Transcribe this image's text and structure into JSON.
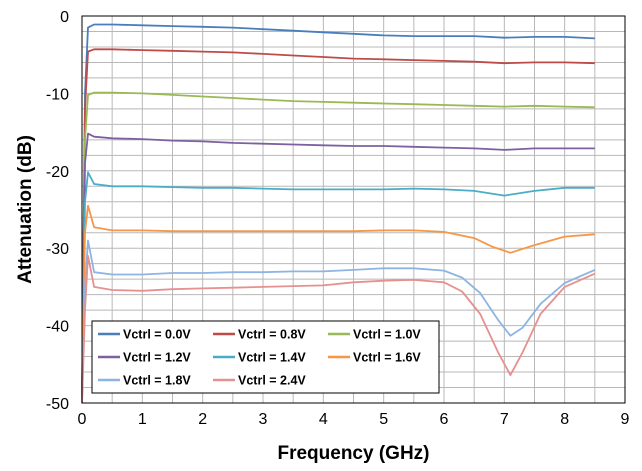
{
  "chart_data": {
    "type": "line",
    "title": "",
    "xlabel": "Frequency  (GHz)",
    "ylabel": "Attenuation  (dB)",
    "xlim": [
      0,
      9
    ],
    "ylim": [
      -50,
      0
    ],
    "x_ticks": [
      "0",
      "1",
      "2",
      "3",
      "4",
      "5",
      "6",
      "7",
      "8",
      "9"
    ],
    "y_ticks": [
      "0",
      "-10",
      "-20",
      "-30",
      "-40",
      "-50"
    ],
    "grid": "on (x and y, 0.5 GHz and 2 dB minor spacing)",
    "legend_position": "bottom-left",
    "series": [
      {
        "name": "Vctrl = 0.0V",
        "color": "#4a7ebb",
        "x": [
          0,
          0.05,
          0.1,
          0.2,
          0.5,
          1,
          1.5,
          2,
          2.5,
          3,
          3.5,
          4,
          4.5,
          5,
          5.5,
          6,
          6.5,
          7,
          7.5,
          8,
          8.5
        ],
        "y": [
          -50,
          -10,
          -1.5,
          -1.1,
          -1.1,
          -1.2,
          -1.3,
          -1.4,
          -1.5,
          -1.7,
          -1.9,
          -2.1,
          -2.3,
          -2.5,
          -2.6,
          -2.6,
          -2.6,
          -2.8,
          -2.7,
          -2.7,
          -2.9
        ]
      },
      {
        "name": "Vctrl = 0.8V",
        "color": "#be4b48",
        "x": [
          0,
          0.05,
          0.1,
          0.2,
          0.5,
          1,
          1.5,
          2,
          2.5,
          3,
          3.5,
          4,
          4.5,
          5,
          5.5,
          6,
          6.5,
          7,
          7.5,
          8,
          8.5
        ],
        "y": [
          -50,
          -12,
          -4.6,
          -4.3,
          -4.3,
          -4.4,
          -4.5,
          -4.6,
          -4.7,
          -4.9,
          -5.1,
          -5.3,
          -5.5,
          -5.6,
          -5.7,
          -5.8,
          -5.9,
          -6.1,
          -6.0,
          -6.0,
          -6.1
        ]
      },
      {
        "name": "Vctrl = 1.0V",
        "color": "#98b954",
        "x": [
          0,
          0.05,
          0.1,
          0.2,
          0.5,
          1,
          1.5,
          2,
          2.5,
          3,
          3.5,
          4,
          4.5,
          5,
          5.5,
          6,
          6.5,
          7,
          7.5,
          8,
          8.5
        ],
        "y": [
          -50,
          -16,
          -10.2,
          -9.9,
          -9.9,
          -10.0,
          -10.2,
          -10.4,
          -10.6,
          -10.8,
          -11.0,
          -11.1,
          -11.2,
          -11.3,
          -11.4,
          -11.5,
          -11.6,
          -11.7,
          -11.6,
          -11.7,
          -11.8
        ]
      },
      {
        "name": "Vctrl = 1.2V",
        "color": "#7d60a0",
        "x": [
          0,
          0.05,
          0.1,
          0.2,
          0.5,
          1,
          1.5,
          2,
          2.5,
          3,
          3.5,
          4,
          4.5,
          5,
          5.5,
          6,
          6.5,
          7,
          7.5,
          8,
          8.5
        ],
        "y": [
          -50,
          -19,
          -15.2,
          -15.6,
          -15.8,
          -15.9,
          -16.1,
          -16.2,
          -16.4,
          -16.5,
          -16.6,
          -16.7,
          -16.8,
          -16.8,
          -16.9,
          -17.0,
          -17.1,
          -17.3,
          -17.1,
          -17.1,
          -17.1
        ]
      },
      {
        "name": "Vctrl = 1.4V",
        "color": "#4bacc6",
        "x": [
          0,
          0.05,
          0.1,
          0.2,
          0.5,
          1,
          1.5,
          2,
          2.5,
          3,
          3.5,
          4,
          4.5,
          5,
          5.5,
          6,
          6.5,
          7,
          7.5,
          8,
          8.5
        ],
        "y": [
          -50,
          -24,
          -20.2,
          -21.7,
          -22.0,
          -22.0,
          -22.1,
          -22.2,
          -22.2,
          -22.3,
          -22.4,
          -22.4,
          -22.4,
          -22.4,
          -22.3,
          -22.4,
          -22.6,
          -23.2,
          -22.6,
          -22.2,
          -22.2
        ]
      },
      {
        "name": "Vctrl = 1.6V",
        "color": "#f79646",
        "x": [
          0,
          0.05,
          0.1,
          0.2,
          0.5,
          1,
          1.5,
          2,
          2.5,
          3,
          3.5,
          4,
          4.5,
          5,
          5.5,
          6,
          6.5,
          6.8,
          7.1,
          7.5,
          8,
          8.5
        ],
        "y": [
          -50,
          -28,
          -24.5,
          -27.3,
          -27.7,
          -27.7,
          -27.8,
          -27.8,
          -27.8,
          -27.8,
          -27.8,
          -27.8,
          -27.8,
          -27.7,
          -27.7,
          -27.9,
          -28.7,
          -29.8,
          -30.6,
          -29.6,
          -28.5,
          -28.2
        ]
      },
      {
        "name": "Vctrl = 1.8V",
        "color": "#8eb4e3",
        "x": [
          0,
          0.05,
          0.1,
          0.2,
          0.5,
          1,
          1.5,
          2,
          2.5,
          3,
          3.5,
          4,
          4.5,
          5,
          5.5,
          6,
          6.3,
          6.6,
          6.9,
          7.1,
          7.3,
          7.6,
          8,
          8.5
        ],
        "y": [
          -50,
          -35,
          -29,
          -33.1,
          -33.4,
          -33.4,
          -33.2,
          -33.2,
          -33.1,
          -33.1,
          -33.0,
          -33.0,
          -32.8,
          -32.6,
          -32.6,
          -32.9,
          -33.8,
          -35.8,
          -39.3,
          -41.3,
          -40.3,
          -37.2,
          -34.5,
          -32.8
        ]
      },
      {
        "name": "Vctrl = 2.4V",
        "color": "#e6908f",
        "x": [
          0,
          0.05,
          0.1,
          0.2,
          0.5,
          1,
          1.5,
          2,
          2.5,
          3,
          3.5,
          4,
          4.5,
          5,
          5.5,
          6,
          6.3,
          6.6,
          6.9,
          7.1,
          7.3,
          7.6,
          8,
          8.5
        ],
        "y": [
          -50,
          -38,
          -31,
          -35.0,
          -35.4,
          -35.5,
          -35.3,
          -35.2,
          -35.1,
          -35.0,
          -34.9,
          -34.8,
          -34.4,
          -34.2,
          -34.1,
          -34.4,
          -35.6,
          -38.5,
          -43.5,
          -46.4,
          -43.5,
          -38.5,
          -35.0,
          -33.3
        ]
      }
    ]
  }
}
